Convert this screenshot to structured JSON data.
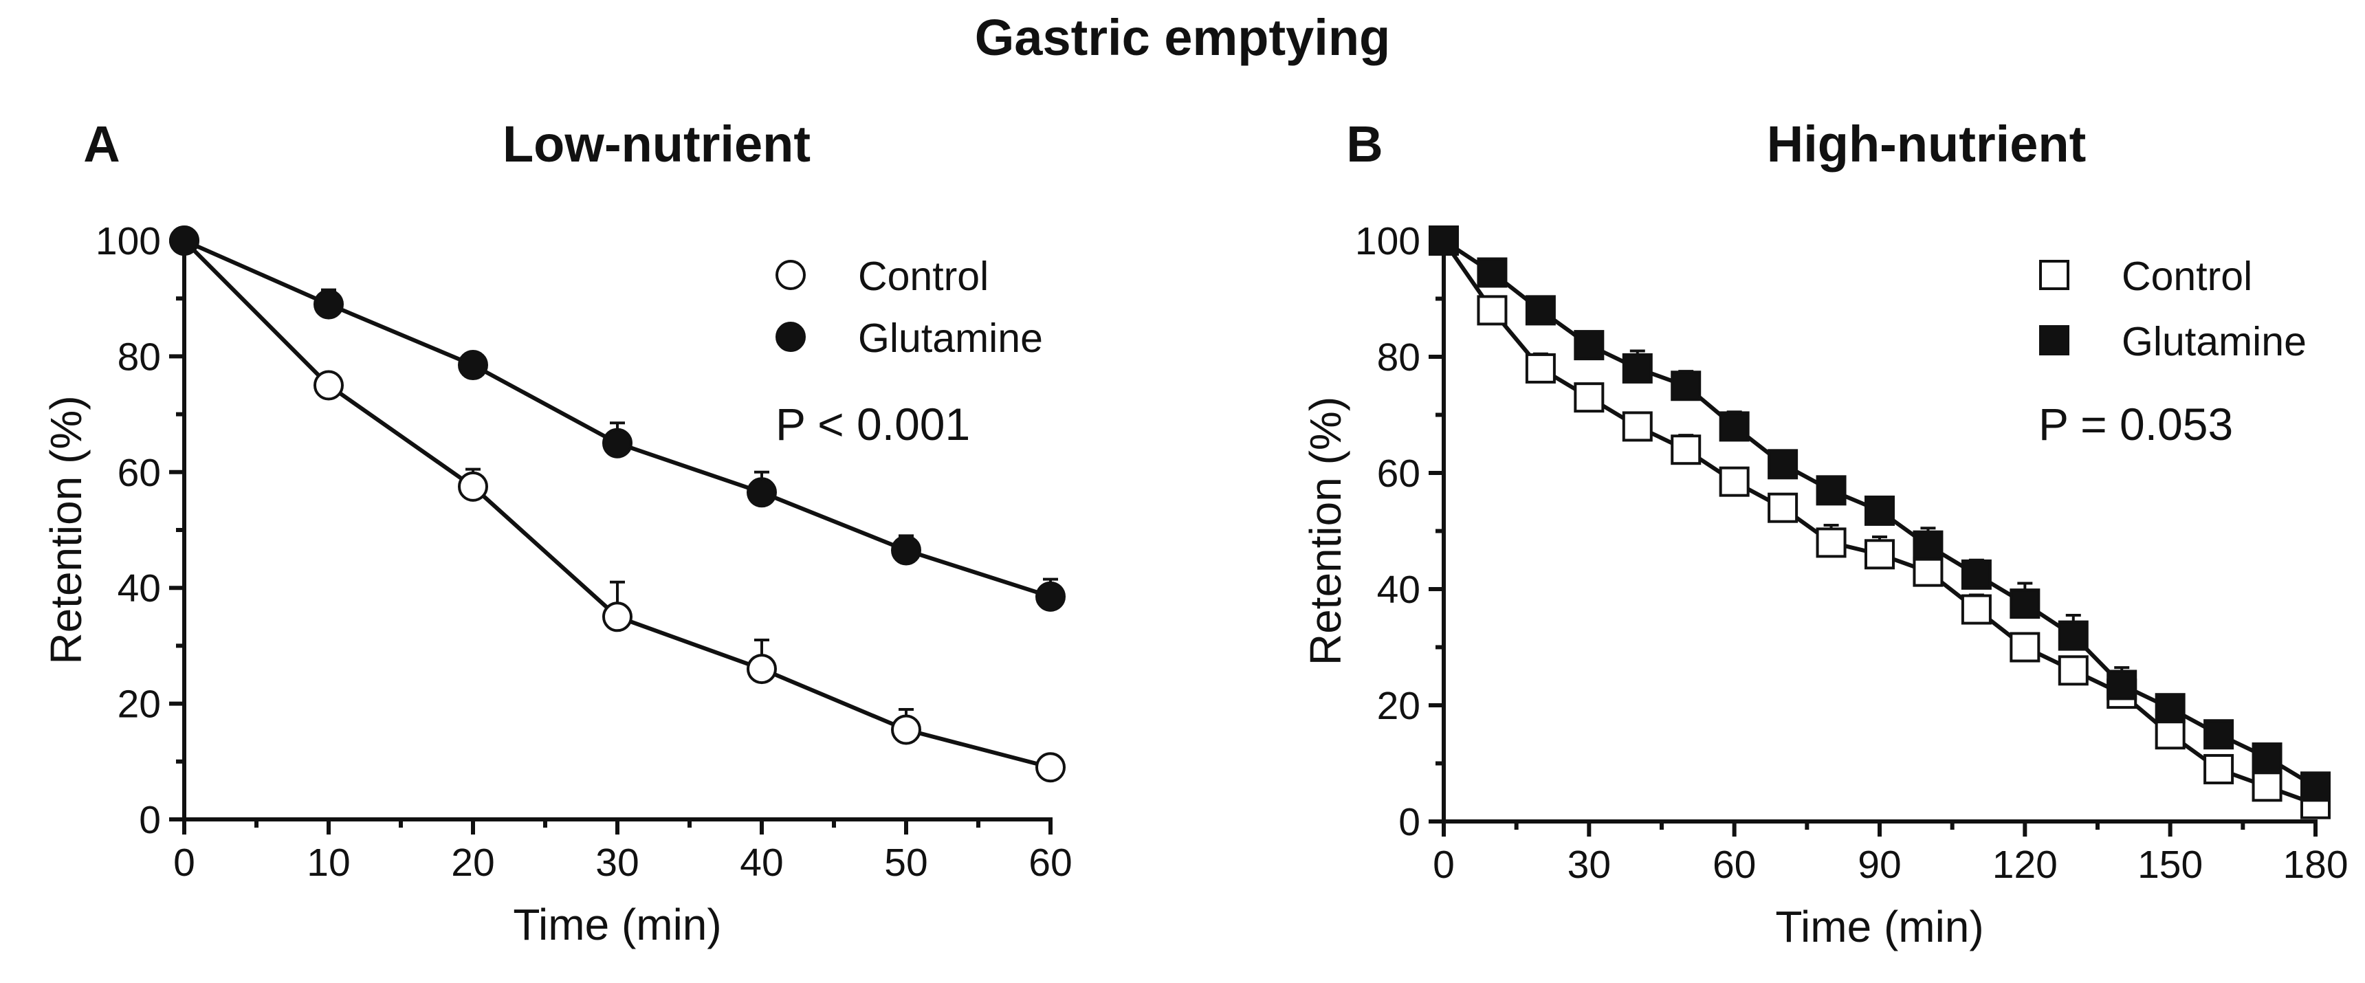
{
  "figure_title": "Gastric emptying",
  "chart_data": [
    {
      "type": "line",
      "panel_label": "A",
      "title": "Low-nutrient",
      "xlabel": "Time (min)",
      "ylabel": "Retention (%)",
      "xlim": [
        0,
        60
      ],
      "ylim": [
        0,
        100
      ],
      "xticks": [
        0,
        10,
        20,
        30,
        40,
        50,
        60
      ],
      "yticks": [
        0,
        20,
        40,
        60,
        80,
        100
      ],
      "legend_position": "top-right",
      "annotation": "P < 0.001",
      "marker_shape": "circle",
      "series": [
        {
          "name": "Control",
          "marker_fill": "#ffffff",
          "x": [
            0,
            10,
            20,
            30,
            40,
            50,
            60
          ],
          "y": [
            100,
            75,
            57.5,
            35,
            26,
            15.5,
            9
          ],
          "err": [
            0,
            2,
            3,
            6,
            5,
            3.5,
            1.5
          ]
        },
        {
          "name": "Glutamine",
          "marker_fill": "#111111",
          "x": [
            0,
            10,
            20,
            30,
            40,
            50,
            60
          ],
          "y": [
            100,
            89,
            78.5,
            65,
            56.5,
            46.5,
            38.5
          ],
          "err": [
            0,
            2.5,
            1.5,
            3.5,
            3.5,
            2.5,
            3
          ]
        }
      ]
    },
    {
      "type": "line",
      "panel_label": "B",
      "title": "High-nutrient",
      "xlabel": "Time (min)",
      "ylabel": "Retention (%)",
      "xlim": [
        0,
        180
      ],
      "ylim": [
        0,
        100
      ],
      "xticks": [
        0,
        30,
        60,
        90,
        120,
        150,
        180
      ],
      "yticks": [
        0,
        20,
        40,
        60,
        80,
        100
      ],
      "legend_position": "top-right",
      "annotation": "P = 0.053",
      "marker_shape": "square",
      "series": [
        {
          "name": "Control",
          "marker_fill": "#ffffff",
          "x": [
            0,
            10,
            20,
            30,
            40,
            50,
            60,
            70,
            80,
            90,
            100,
            110,
            120,
            130,
            140,
            150,
            160,
            170,
            180
          ],
          "y": [
            100,
            88,
            78,
            73,
            68,
            64,
            58.5,
            54,
            48,
            46,
            43,
            36.5,
            30,
            26,
            22,
            15,
            9,
            6,
            3
          ],
          "err": [
            0,
            2,
            2.5,
            2,
            2,
            2.5,
            2,
            2,
            3,
            3,
            3,
            2.5,
            2,
            2,
            2,
            1.5,
            1.5,
            1,
            1
          ]
        },
        {
          "name": "Glutamine",
          "marker_fill": "#111111",
          "x": [
            0,
            10,
            20,
            30,
            40,
            50,
            60,
            70,
            80,
            90,
            100,
            110,
            120,
            130,
            140,
            150,
            160,
            170,
            180
          ],
          "y": [
            100,
            94.5,
            88,
            82,
            78,
            75,
            68,
            61.5,
            57,
            53.5,
            47.5,
            42.5,
            37.5,
            32,
            23.5,
            19.5,
            15,
            11,
            6
          ],
          "err": [
            0,
            1.5,
            1.5,
            2,
            3,
            2.5,
            2.5,
            2,
            2,
            2,
            3,
            2.5,
            3.5,
            3.5,
            3,
            1.5,
            2,
            1.5,
            1
          ]
        }
      ]
    }
  ]
}
